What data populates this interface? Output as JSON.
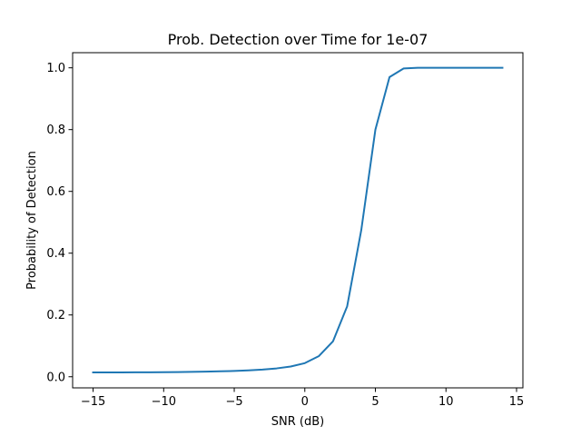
{
  "chart_data": {
    "type": "line",
    "title": "Prob. Detection over Time for 1e-07",
    "xlabel": "SNR (dB)",
    "ylabel": "Probability of Detection",
    "xlim": [
      -16.45,
      15.45
    ],
    "ylim": [
      -0.036,
      1.049
    ],
    "grid": false,
    "xticks": [
      -15,
      -10,
      -5,
      0,
      5,
      10,
      15
    ],
    "xtick_labels": [
      "−15",
      "−10",
      "−5",
      "0",
      "5",
      "10",
      "15"
    ],
    "yticks": [
      0.0,
      0.2,
      0.4,
      0.6,
      0.8,
      1.0
    ],
    "ytick_labels": [
      "0.0",
      "0.2",
      "0.4",
      "0.6",
      "0.8",
      "1.0"
    ],
    "series": [
      {
        "color": "#1f77b4",
        "x": [
          -15,
          -14,
          -13,
          -12,
          -11,
          -10,
          -9,
          -8,
          -7,
          -6,
          -5,
          -4,
          -3,
          -2,
          -1,
          0,
          1,
          2,
          3,
          4,
          5,
          6,
          7,
          8,
          9,
          10,
          11,
          12,
          13,
          14
        ],
        "y": [
          0.014,
          0.014,
          0.014,
          0.0142,
          0.0145,
          0.0148,
          0.0152,
          0.0158,
          0.0165,
          0.0175,
          0.0188,
          0.0205,
          0.023,
          0.027,
          0.033,
          0.044,
          0.067,
          0.115,
          0.228,
          0.475,
          0.8,
          0.97,
          0.998,
          1.0,
          1.0,
          1.0,
          1.0,
          1.0,
          1.0,
          1.0
        ]
      }
    ]
  }
}
